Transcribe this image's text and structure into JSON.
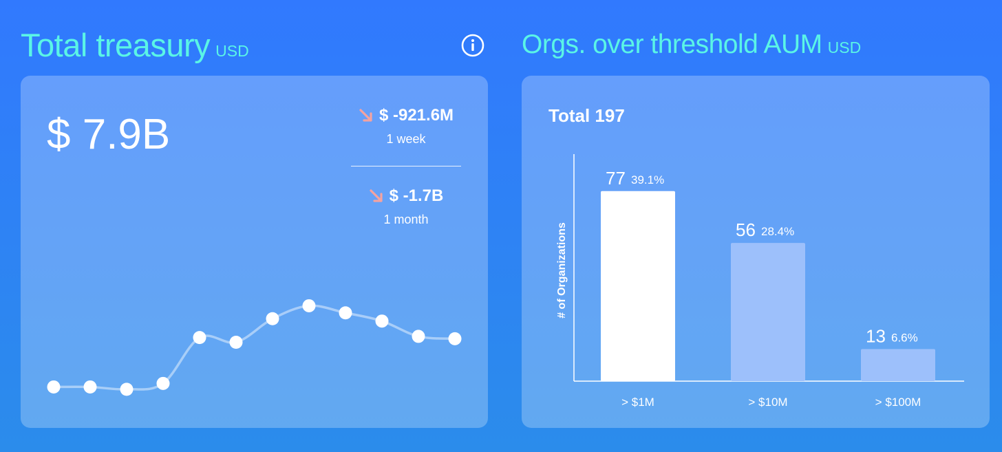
{
  "left_panel": {
    "title": "Total treasury",
    "unit": "USD",
    "info_icon": "info-icon",
    "big_value": "$ 7.9B",
    "changes": [
      {
        "value": "$ -921.6M",
        "period": "1 week",
        "direction": "down",
        "color": "#f4a3a0"
      },
      {
        "value": "$ -1.7B",
        "period": "1 month",
        "direction": "down",
        "color": "#f4a3a0"
      }
    ]
  },
  "right_panel": {
    "title": "Orgs. over threshold AUM",
    "unit": "USD",
    "total_label": "Total 197"
  },
  "chart_data": [
    {
      "type": "line",
      "x": [
        1,
        2,
        3,
        4,
        5,
        6,
        7,
        8,
        9,
        10,
        11,
        12
      ],
      "values": [
        0.05,
        0.05,
        0.03,
        0.08,
        0.47,
        0.43,
        0.63,
        0.74,
        0.68,
        0.61,
        0.48,
        0.46
      ],
      "ylim": [
        0,
        1
      ],
      "grid": false,
      "color": "#ffffff"
    },
    {
      "type": "bar",
      "categories": [
        "> $1M",
        "> $10M",
        "> $100M"
      ],
      "values": [
        77,
        56,
        13
      ],
      "percent_labels": [
        "39.1%",
        "28.4%",
        "6.6%"
      ],
      "ylabel": "# of Organizations",
      "ylim": [
        0,
        92
      ],
      "grid": false,
      "colors": [
        "#ffffff",
        "#9dc0fb",
        "#9dc0fb"
      ]
    }
  ]
}
